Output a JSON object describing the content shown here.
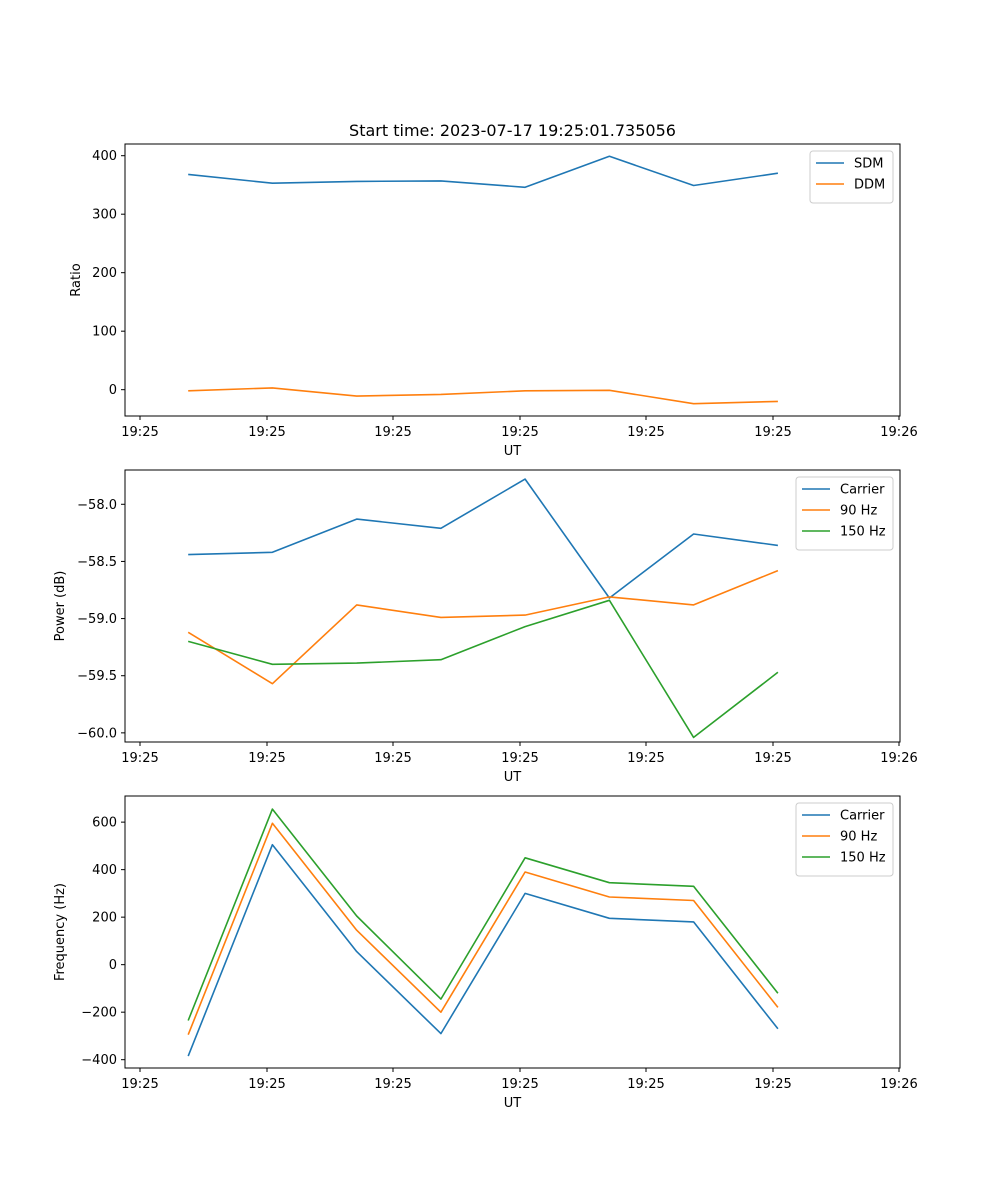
{
  "figure_title": "Start time: 2023-07-17 19:25:01.735056",
  "colors": {
    "blue": "#1f77b4",
    "orange": "#ff7f0e",
    "green": "#2ca02c"
  },
  "chart_data": [
    {
      "type": "line",
      "xlabel": "UT",
      "ylabel": "Ratio",
      "x_tick_labels": [
        "19:25",
        "19:25",
        "19:25",
        "19:25",
        "19:25",
        "19:25",
        "19:26"
      ],
      "y_ticks": [
        0,
        100,
        200,
        300,
        400
      ],
      "y_tick_labels": [
        "0",
        "100",
        "200",
        "300",
        "400"
      ],
      "ylim": [
        -45,
        420
      ],
      "x": [
        1,
        2,
        3,
        4,
        5,
        6,
        7,
        8
      ],
      "xlim": [
        0.25,
        9.45
      ],
      "legend_position": "top-right",
      "series": [
        {
          "name": "SDM",
          "color": "#1f77b4",
          "values": [
            368,
            353,
            356,
            357,
            346,
            399,
            349,
            370
          ]
        },
        {
          "name": "DDM",
          "color": "#ff7f0e",
          "values": [
            -2,
            3,
            -11,
            -8,
            -2,
            -1,
            -24,
            -20
          ]
        }
      ]
    },
    {
      "type": "line",
      "xlabel": "UT",
      "ylabel": "Power (dB)",
      "x_tick_labels": [
        "19:25",
        "19:25",
        "19:25",
        "19:25",
        "19:25",
        "19:25",
        "19:26"
      ],
      "y_ticks": [
        -60.0,
        -59.5,
        -59.0,
        -58.5,
        -58.0
      ],
      "y_tick_labels": [
        "−60.0",
        "−59.5",
        "−59.0",
        "−58.5",
        "−58.0"
      ],
      "ylim": [
        -60.08,
        -57.7
      ],
      "x": [
        1,
        2,
        3,
        4,
        5,
        6,
        7,
        8
      ],
      "xlim": [
        0.25,
        9.45
      ],
      "legend_position": "top-right",
      "series": [
        {
          "name": "Carrier",
          "color": "#1f77b4",
          "values": [
            -58.44,
            -58.42,
            -58.13,
            -58.21,
            -57.78,
            -58.82,
            -58.26,
            -58.36
          ]
        },
        {
          "name": "90 Hz",
          "color": "#ff7f0e",
          "values": [
            -59.12,
            -59.57,
            -58.88,
            -58.99,
            -58.97,
            -58.81,
            -58.88,
            -58.58
          ]
        },
        {
          "name": "150 Hz",
          "color": "#2ca02c",
          "values": [
            -59.2,
            -59.4,
            -59.39,
            -59.36,
            -59.07,
            -58.84,
            -60.04,
            -59.47
          ]
        }
      ]
    },
    {
      "type": "line",
      "xlabel": "UT",
      "ylabel": "Frequency (Hz)",
      "x_tick_labels": [
        "19:25",
        "19:25",
        "19:25",
        "19:25",
        "19:25",
        "19:25",
        "19:26"
      ],
      "y_ticks": [
        -400,
        -200,
        0,
        200,
        400,
        600
      ],
      "y_tick_labels": [
        "−400",
        "−200",
        "0",
        "200",
        "400",
        "600"
      ],
      "ylim": [
        -435,
        710
      ],
      "x": [
        1,
        2,
        3,
        4,
        5,
        6,
        7,
        8
      ],
      "xlim": [
        0.25,
        9.45
      ],
      "legend_position": "top-right",
      "series": [
        {
          "name": "Carrier",
          "color": "#1f77b4",
          "values": [
            -385,
            505,
            55,
            -290,
            300,
            195,
            180,
            -270
          ]
        },
        {
          "name": "90 Hz",
          "color": "#ff7f0e",
          "values": [
            -295,
            595,
            145,
            -200,
            390,
            285,
            270,
            -180
          ]
        },
        {
          "name": "150 Hz",
          "color": "#2ca02c",
          "values": [
            -235,
            655,
            205,
            -145,
            450,
            345,
            330,
            -120
          ]
        }
      ]
    }
  ]
}
